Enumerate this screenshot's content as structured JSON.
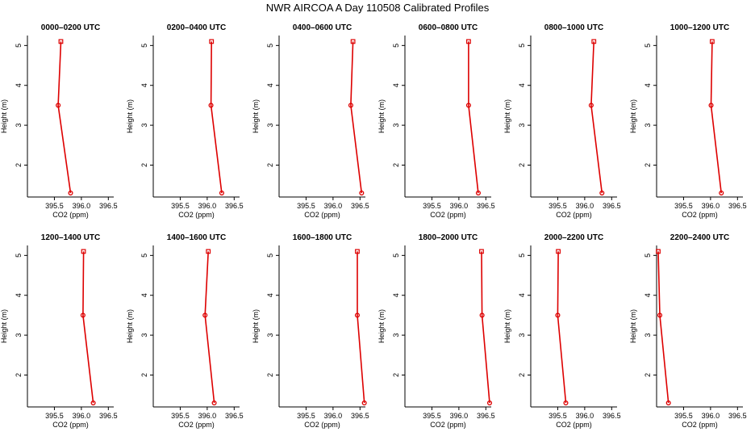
{
  "title": "NWR AIRCOA A  Day 110508  Calibrated Profiles",
  "series_color": "#dd0000",
  "chart_data": [
    {
      "type": "line",
      "title": "0000–0200 UTC",
      "xlabel": "CO2 (ppm)",
      "ylabel": "Height (m)",
      "xlim": [
        395.0,
        396.6
      ],
      "ylim": [
        1.2,
        5.25
      ],
      "xticks": [
        "395.5",
        "396.0",
        "396.5"
      ],
      "yticks": [
        "2",
        "3",
        "4",
        "5"
      ],
      "grid": false,
      "x": [
        395.8,
        395.57,
        395.62
      ],
      "y": [
        1.3,
        3.5,
        5.1
      ]
    },
    {
      "type": "line",
      "title": "0200–0400 UTC",
      "xlabel": "CO2 (ppm)",
      "ylabel": "Height (m)",
      "xlim": [
        395.0,
        396.6
      ],
      "ylim": [
        1.2,
        5.25
      ],
      "xticks": [
        "395.5",
        "396.0",
        "396.5"
      ],
      "yticks": [
        "2",
        "3",
        "4",
        "5"
      ],
      "grid": false,
      "x": [
        396.27,
        396.07,
        396.08
      ],
      "y": [
        1.3,
        3.5,
        5.1
      ]
    },
    {
      "type": "line",
      "title": "0400–0600 UTC",
      "xlabel": "CO2 (ppm)",
      "ylabel": "Height (m)",
      "xlim": [
        395.0,
        396.6
      ],
      "ylim": [
        1.2,
        5.25
      ],
      "xticks": [
        "395.5",
        "396.0",
        "396.5"
      ],
      "yticks": [
        "2",
        "3",
        "4",
        "5"
      ],
      "grid": false,
      "x": [
        396.53,
        396.33,
        396.37
      ],
      "y": [
        1.3,
        3.5,
        5.1
      ]
    },
    {
      "type": "line",
      "title": "0600–0800 UTC",
      "xlabel": "CO2 (ppm)",
      "ylabel": "Height (m)",
      "xlim": [
        395.0,
        396.6
      ],
      "ylim": [
        1.2,
        5.25
      ],
      "xticks": [
        "395.5",
        "396.0",
        "396.5"
      ],
      "yticks": [
        "2",
        "3",
        "4",
        "5"
      ],
      "grid": false,
      "x": [
        396.36,
        396.18,
        396.18
      ],
      "y": [
        1.3,
        3.5,
        5.1
      ]
    },
    {
      "type": "line",
      "title": "0800–1000 UTC",
      "xlabel": "CO2 (ppm)",
      "ylabel": "Height (m)",
      "xlim": [
        395.0,
        396.6
      ],
      "ylim": [
        1.2,
        5.25
      ],
      "xticks": [
        "395.5",
        "396.0",
        "396.5"
      ],
      "yticks": [
        "2",
        "3",
        "4",
        "5"
      ],
      "grid": false,
      "x": [
        396.32,
        396.12,
        396.17
      ],
      "y": [
        1.3,
        3.5,
        5.1
      ]
    },
    {
      "type": "line",
      "title": "1000–1200 UTC",
      "xlabel": "CO2 (ppm)",
      "ylabel": "Height (m)",
      "xlim": [
        395.0,
        396.6
      ],
      "ylim": [
        1.2,
        5.25
      ],
      "xticks": [
        "395.5",
        "396.0",
        "396.5"
      ],
      "yticks": [
        "2",
        "3",
        "4",
        "5"
      ],
      "grid": false,
      "x": [
        396.2,
        396.01,
        396.03
      ],
      "y": [
        1.3,
        3.5,
        5.1
      ]
    },
    {
      "type": "line",
      "title": "1200–1400 UTC",
      "xlabel": "CO2 (ppm)",
      "ylabel": "Height (m)",
      "xlim": [
        395.0,
        396.6
      ],
      "ylim": [
        1.2,
        5.25
      ],
      "xticks": [
        "395.5",
        "396.0",
        "396.5"
      ],
      "yticks": [
        "2",
        "3",
        "4",
        "5"
      ],
      "grid": false,
      "x": [
        396.22,
        396.03,
        396.04
      ],
      "y": [
        1.3,
        3.5,
        5.1
      ]
    },
    {
      "type": "line",
      "title": "1400–1600 UTC",
      "xlabel": "CO2 (ppm)",
      "ylabel": "Height (m)",
      "xlim": [
        395.0,
        396.6
      ],
      "ylim": [
        1.2,
        5.25
      ],
      "xticks": [
        "395.5",
        "396.0",
        "396.5"
      ],
      "yticks": [
        "2",
        "3",
        "4",
        "5"
      ],
      "grid": false,
      "x": [
        396.13,
        395.96,
        396.02
      ],
      "y": [
        1.3,
        3.5,
        5.1
      ]
    },
    {
      "type": "line",
      "title": "1600–1800 UTC",
      "xlabel": "CO2 (ppm)",
      "ylabel": "Height (m)",
      "xlim": [
        395.0,
        396.6
      ],
      "ylim": [
        1.2,
        5.25
      ],
      "xticks": [
        "395.5",
        "396.0",
        "396.5"
      ],
      "yticks": [
        "2",
        "3",
        "4",
        "5"
      ],
      "grid": false,
      "x": [
        396.58,
        396.45,
        396.45
      ],
      "y": [
        1.3,
        3.5,
        5.1
      ]
    },
    {
      "type": "line",
      "title": "1800–2000 UTC",
      "xlabel": "CO2 (ppm)",
      "ylabel": "Height (m)",
      "xlim": [
        395.0,
        396.6
      ],
      "ylim": [
        1.2,
        5.25
      ],
      "xticks": [
        "395.5",
        "396.0",
        "396.5"
      ],
      "yticks": [
        "2",
        "3",
        "4",
        "5"
      ],
      "grid": false,
      "x": [
        396.57,
        396.43,
        396.42
      ],
      "y": [
        1.3,
        3.5,
        5.1
      ]
    },
    {
      "type": "line",
      "title": "2000–2200 UTC",
      "xlabel": "CO2 (ppm)",
      "ylabel": "Height (m)",
      "xlim": [
        395.0,
        396.6
      ],
      "ylim": [
        1.2,
        5.25
      ],
      "xticks": [
        "395.5",
        "396.0",
        "396.5"
      ],
      "yticks": [
        "2",
        "3",
        "4",
        "5"
      ],
      "grid": false,
      "x": [
        395.65,
        395.5,
        395.51
      ],
      "y": [
        1.3,
        3.5,
        5.1
      ]
    },
    {
      "type": "line",
      "title": "2200–2400 UTC",
      "xlabel": "CO2 (ppm)",
      "ylabel": "Height (m)",
      "xlim": [
        395.0,
        396.6
      ],
      "ylim": [
        1.2,
        5.25
      ],
      "xticks": [
        "395.5",
        "396.0",
        "396.5"
      ],
      "yticks": [
        "2",
        "3",
        "4",
        "5"
      ],
      "grid": false,
      "x": [
        395.22,
        395.06,
        395.03
      ],
      "y": [
        1.3,
        3.5,
        5.1
      ]
    }
  ]
}
